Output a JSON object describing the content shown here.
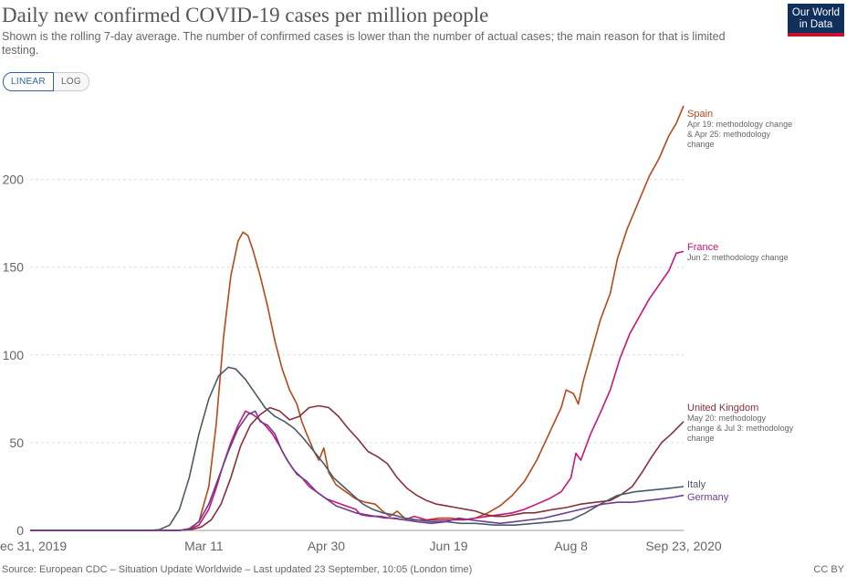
{
  "header": {
    "title": "Daily new confirmed COVID-19 cases per million people",
    "subtitle": "Shown is the rolling 7-day average. The number of confirmed cases is lower than the number of actual cases; the main reason for that is limited testing.",
    "logo_line1": "Our World",
    "logo_line2": "in Data"
  },
  "controls": {
    "linear_label": "LINEAR",
    "log_label": "LOG",
    "selected": "linear"
  },
  "footer": {
    "source": "Source: European CDC – Situation Update Worldwide – Last updated 23 September, 10:05 (London time)",
    "license": "CC BY"
  },
  "chart_data": {
    "type": "line",
    "xlabel": "",
    "ylabel": "",
    "x_range": [
      "2019-12-31",
      "2020-09-23"
    ],
    "ylim": [
      0,
      245
    ],
    "grid": true,
    "x_ticks": [
      {
        "date": "2019-12-31",
        "label": "ec 31, 2019"
      },
      {
        "date": "2020-03-11",
        "label": "Mar 11"
      },
      {
        "date": "2020-04-30",
        "label": "Apr 30"
      },
      {
        "date": "2020-06-19",
        "label": "Jun 19"
      },
      {
        "date": "2020-08-08",
        "label": "Aug 8"
      },
      {
        "date": "2020-09-23",
        "label": "Sep 23, 2020"
      }
    ],
    "y_ticks": [
      0,
      50,
      100,
      150,
      200
    ],
    "series": [
      {
        "name": "Spain",
        "color": "#b5491a",
        "annotation": [
          "Apr 19: methodology change",
          "& Apr 25: methodology",
          "change"
        ],
        "points": [
          [
            "2019-12-31",
            0
          ],
          [
            "2020-03-01",
            0
          ],
          [
            "2020-03-05",
            0.5
          ],
          [
            "2020-03-09",
            5
          ],
          [
            "2020-03-13",
            25
          ],
          [
            "2020-03-16",
            60
          ],
          [
            "2020-03-19",
            110
          ],
          [
            "2020-03-22",
            145
          ],
          [
            "2020-03-25",
            165
          ],
          [
            "2020-03-27",
            170
          ],
          [
            "2020-03-29",
            168
          ],
          [
            "2020-03-31",
            160
          ],
          [
            "2020-04-03",
            145
          ],
          [
            "2020-04-06",
            128
          ],
          [
            "2020-04-09",
            108
          ],
          [
            "2020-04-12",
            92
          ],
          [
            "2020-04-15",
            80
          ],
          [
            "2020-04-18",
            72
          ],
          [
            "2020-04-20",
            62
          ],
          [
            "2020-04-22",
            55
          ],
          [
            "2020-04-25",
            45
          ],
          [
            "2020-04-27",
            40
          ],
          [
            "2020-04-29",
            47
          ],
          [
            "2020-05-01",
            33
          ],
          [
            "2020-05-04",
            26
          ],
          [
            "2020-05-08",
            22
          ],
          [
            "2020-05-12",
            18
          ],
          [
            "2020-05-16",
            16
          ],
          [
            "2020-05-20",
            15
          ],
          [
            "2020-05-23",
            11
          ],
          [
            "2020-05-26",
            8
          ],
          [
            "2020-05-29",
            11
          ],
          [
            "2020-06-01",
            7
          ],
          [
            "2020-06-05",
            6
          ],
          [
            "2020-06-10",
            6
          ],
          [
            "2020-06-15",
            7
          ],
          [
            "2020-06-20",
            7
          ],
          [
            "2020-06-25",
            6
          ],
          [
            "2020-06-30",
            7
          ],
          [
            "2020-07-05",
            10
          ],
          [
            "2020-07-10",
            14
          ],
          [
            "2020-07-15",
            20
          ],
          [
            "2020-07-20",
            28
          ],
          [
            "2020-07-25",
            40
          ],
          [
            "2020-07-30",
            55
          ],
          [
            "2020-08-04",
            70
          ],
          [
            "2020-08-06",
            80
          ],
          [
            "2020-08-09",
            78
          ],
          [
            "2020-08-11",
            72
          ],
          [
            "2020-08-13",
            85
          ],
          [
            "2020-08-16",
            100
          ],
          [
            "2020-08-20",
            120
          ],
          [
            "2020-08-24",
            135
          ],
          [
            "2020-08-27",
            155
          ],
          [
            "2020-08-31",
            172
          ],
          [
            "2020-09-03",
            182
          ],
          [
            "2020-09-06",
            192
          ],
          [
            "2020-09-09",
            202
          ],
          [
            "2020-09-13",
            212
          ],
          [
            "2020-09-17",
            225
          ],
          [
            "2020-09-20",
            232
          ],
          [
            "2020-09-23",
            242
          ]
        ]
      },
      {
        "name": "France",
        "color": "#c8157a",
        "annotation": [
          "Jun 2: methodology change"
        ],
        "points": [
          [
            "2019-12-31",
            0
          ],
          [
            "2020-03-01",
            0
          ],
          [
            "2020-03-05",
            0.5
          ],
          [
            "2020-03-09",
            3
          ],
          [
            "2020-03-13",
            12
          ],
          [
            "2020-03-16",
            24
          ],
          [
            "2020-03-19",
            38
          ],
          [
            "2020-03-22",
            50
          ],
          [
            "2020-03-25",
            60
          ],
          [
            "2020-03-28",
            68
          ],
          [
            "2020-03-31",
            66
          ],
          [
            "2020-04-02",
            64
          ],
          [
            "2020-04-05",
            60
          ],
          [
            "2020-04-08",
            55
          ],
          [
            "2020-04-11",
            48
          ],
          [
            "2020-04-14",
            40
          ],
          [
            "2020-04-17",
            34
          ],
          [
            "2020-04-20",
            30
          ],
          [
            "2020-04-23",
            25
          ],
          [
            "2020-04-26",
            22
          ],
          [
            "2020-04-30",
            18
          ],
          [
            "2020-05-04",
            16
          ],
          [
            "2020-05-08",
            14
          ],
          [
            "2020-05-12",
            12
          ],
          [
            "2020-05-14",
            9
          ],
          [
            "2020-05-18",
            8
          ],
          [
            "2020-05-22",
            8
          ],
          [
            "2020-05-26",
            7
          ],
          [
            "2020-06-01",
            6
          ],
          [
            "2020-06-05",
            8
          ],
          [
            "2020-06-10",
            6
          ],
          [
            "2020-06-15",
            6
          ],
          [
            "2020-06-20",
            6
          ],
          [
            "2020-06-25",
            6
          ],
          [
            "2020-06-30",
            7
          ],
          [
            "2020-07-05",
            8
          ],
          [
            "2020-07-10",
            9
          ],
          [
            "2020-07-15",
            10
          ],
          [
            "2020-07-20",
            12
          ],
          [
            "2020-07-25",
            15
          ],
          [
            "2020-07-30",
            18
          ],
          [
            "2020-08-04",
            22
          ],
          [
            "2020-08-08",
            30
          ],
          [
            "2020-08-10",
            44
          ],
          [
            "2020-08-12",
            40
          ],
          [
            "2020-08-16",
            55
          ],
          [
            "2020-08-20",
            67
          ],
          [
            "2020-08-24",
            80
          ],
          [
            "2020-08-28",
            98
          ],
          [
            "2020-09-01",
            112
          ],
          [
            "2020-09-05",
            122
          ],
          [
            "2020-09-09",
            132
          ],
          [
            "2020-09-13",
            140
          ],
          [
            "2020-09-17",
            148
          ],
          [
            "2020-09-20",
            158
          ],
          [
            "2020-09-23",
            159
          ]
        ]
      },
      {
        "name": "United Kingdom",
        "color": "#883039",
        "annotation": [
          "May 20: methodology",
          "change & Jul 3: methodology",
          "change"
        ],
        "points": [
          [
            "2019-12-31",
            0
          ],
          [
            "2020-03-01",
            0
          ],
          [
            "2020-03-06",
            0.5
          ],
          [
            "2020-03-10",
            2
          ],
          [
            "2020-03-14",
            6
          ],
          [
            "2020-03-18",
            15
          ],
          [
            "2020-03-22",
            30
          ],
          [
            "2020-03-26",
            48
          ],
          [
            "2020-03-30",
            60
          ],
          [
            "2020-04-03",
            66
          ],
          [
            "2020-04-07",
            70
          ],
          [
            "2020-04-11",
            68
          ],
          [
            "2020-04-15",
            63
          ],
          [
            "2020-04-19",
            65
          ],
          [
            "2020-04-23",
            70
          ],
          [
            "2020-04-27",
            71
          ],
          [
            "2020-05-01",
            70
          ],
          [
            "2020-05-05",
            65
          ],
          [
            "2020-05-09",
            58
          ],
          [
            "2020-05-13",
            52
          ],
          [
            "2020-05-17",
            45
          ],
          [
            "2020-05-21",
            42
          ],
          [
            "2020-05-25",
            38
          ],
          [
            "2020-05-29",
            30
          ],
          [
            "2020-06-02",
            24
          ],
          [
            "2020-06-06",
            20
          ],
          [
            "2020-06-10",
            17
          ],
          [
            "2020-06-14",
            15
          ],
          [
            "2020-06-18",
            14
          ],
          [
            "2020-06-22",
            13
          ],
          [
            "2020-06-26",
            12
          ],
          [
            "2020-06-30",
            11
          ],
          [
            "2020-07-04",
            9
          ],
          [
            "2020-07-08",
            8
          ],
          [
            "2020-07-12",
            8
          ],
          [
            "2020-07-16",
            9
          ],
          [
            "2020-07-20",
            10
          ],
          [
            "2020-07-24",
            10
          ],
          [
            "2020-07-28",
            11
          ],
          [
            "2020-08-01",
            12
          ],
          [
            "2020-08-06",
            13
          ],
          [
            "2020-08-12",
            15
          ],
          [
            "2020-08-18",
            16
          ],
          [
            "2020-08-24",
            17
          ],
          [
            "2020-08-28",
            20
          ],
          [
            "2020-09-02",
            25
          ],
          [
            "2020-09-06",
            33
          ],
          [
            "2020-09-10",
            42
          ],
          [
            "2020-09-14",
            50
          ],
          [
            "2020-09-18",
            55
          ],
          [
            "2020-09-23",
            62
          ]
        ]
      },
      {
        "name": "Italy",
        "color": "#4a5a6a",
        "annotation": [],
        "points": [
          [
            "2019-12-31",
            0
          ],
          [
            "2020-02-18",
            0
          ],
          [
            "2020-02-22",
            0.5
          ],
          [
            "2020-02-26",
            3
          ],
          [
            "2020-03-01",
            12
          ],
          [
            "2020-03-05",
            30
          ],
          [
            "2020-03-09",
            55
          ],
          [
            "2020-03-13",
            75
          ],
          [
            "2020-03-17",
            88
          ],
          [
            "2020-03-21",
            93
          ],
          [
            "2020-03-24",
            92
          ],
          [
            "2020-03-28",
            86
          ],
          [
            "2020-04-01",
            78
          ],
          [
            "2020-04-05",
            70
          ],
          [
            "2020-04-09",
            65
          ],
          [
            "2020-04-13",
            62
          ],
          [
            "2020-04-17",
            58
          ],
          [
            "2020-04-21",
            52
          ],
          [
            "2020-04-25",
            45
          ],
          [
            "2020-04-29",
            38
          ],
          [
            "2020-05-03",
            30
          ],
          [
            "2020-05-07",
            25
          ],
          [
            "2020-05-11",
            20
          ],
          [
            "2020-05-15",
            15
          ],
          [
            "2020-05-19",
            12
          ],
          [
            "2020-05-23",
            10
          ],
          [
            "2020-05-27",
            9
          ],
          [
            "2020-06-01",
            7
          ],
          [
            "2020-06-06",
            6
          ],
          [
            "2020-06-12",
            5
          ],
          [
            "2020-06-18",
            5
          ],
          [
            "2020-06-24",
            4
          ],
          [
            "2020-06-30",
            4
          ],
          [
            "2020-07-08",
            3
          ],
          [
            "2020-07-16",
            3
          ],
          [
            "2020-07-24",
            4
          ],
          [
            "2020-08-01",
            5
          ],
          [
            "2020-08-08",
            6
          ],
          [
            "2020-08-14",
            10
          ],
          [
            "2020-08-20",
            15
          ],
          [
            "2020-08-27",
            20
          ],
          [
            "2020-09-03",
            22
          ],
          [
            "2020-09-10",
            23
          ],
          [
            "2020-09-17",
            24
          ],
          [
            "2020-09-23",
            25
          ]
        ]
      },
      {
        "name": "Germany",
        "color": "#6d3e91",
        "annotation": [],
        "points": [
          [
            "2019-12-31",
            0
          ],
          [
            "2020-03-01",
            0
          ],
          [
            "2020-03-05",
            1
          ],
          [
            "2020-03-09",
            5
          ],
          [
            "2020-03-13",
            15
          ],
          [
            "2020-03-17",
            30
          ],
          [
            "2020-03-21",
            45
          ],
          [
            "2020-03-25",
            58
          ],
          [
            "2020-03-29",
            66
          ],
          [
            "2020-04-01",
            68
          ],
          [
            "2020-04-03",
            62
          ],
          [
            "2020-04-06",
            60
          ],
          [
            "2020-04-09",
            55
          ],
          [
            "2020-04-12",
            45
          ],
          [
            "2020-04-15",
            38
          ],
          [
            "2020-04-18",
            32
          ],
          [
            "2020-04-22",
            28
          ],
          [
            "2020-04-26",
            22
          ],
          [
            "2020-04-30",
            18
          ],
          [
            "2020-05-04",
            14
          ],
          [
            "2020-05-08",
            12
          ],
          [
            "2020-05-12",
            10
          ],
          [
            "2020-05-16",
            9
          ],
          [
            "2020-05-20",
            8
          ],
          [
            "2020-05-24",
            7
          ],
          [
            "2020-05-28",
            7
          ],
          [
            "2020-06-01",
            6
          ],
          [
            "2020-06-06",
            5
          ],
          [
            "2020-06-12",
            4
          ],
          [
            "2020-06-18",
            5
          ],
          [
            "2020-06-23",
            7
          ],
          [
            "2020-06-28",
            6
          ],
          [
            "2020-07-04",
            5
          ],
          [
            "2020-07-10",
            4
          ],
          [
            "2020-07-16",
            5
          ],
          [
            "2020-07-22",
            6
          ],
          [
            "2020-07-28",
            7
          ],
          [
            "2020-08-03",
            9
          ],
          [
            "2020-08-09",
            11
          ],
          [
            "2020-08-15",
            13
          ],
          [
            "2020-08-21",
            15
          ],
          [
            "2020-08-27",
            16
          ],
          [
            "2020-09-02",
            16
          ],
          [
            "2020-09-08",
            17
          ],
          [
            "2020-09-14",
            18
          ],
          [
            "2020-09-19",
            19
          ],
          [
            "2020-09-23",
            20
          ]
        ]
      }
    ]
  }
}
